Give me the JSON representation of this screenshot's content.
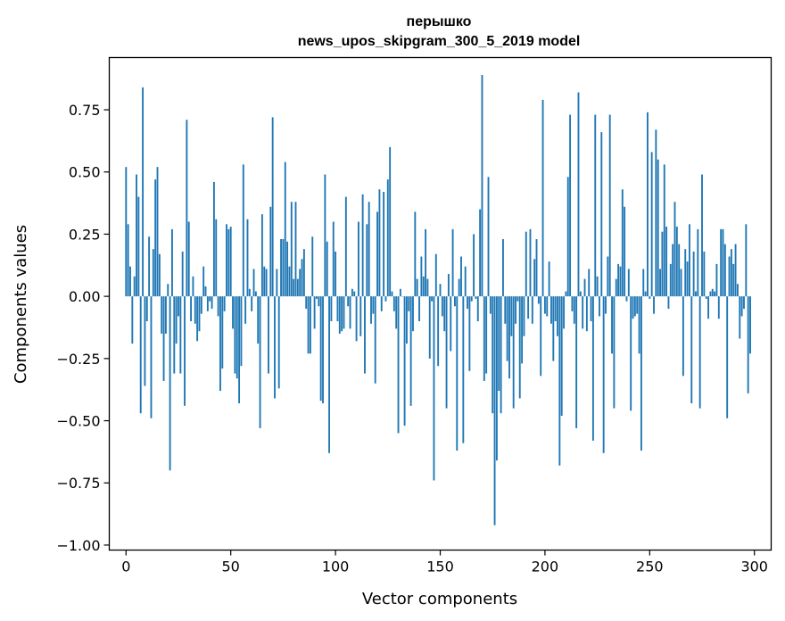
{
  "chart_data": {
    "type": "bar",
    "title": "перышко",
    "subtitle": "news_upos_skipgram_300_5_2019 model",
    "xlabel": "Vector components",
    "ylabel": "Components values",
    "xlim": [
      -8,
      308
    ],
    "ylim": [
      -1.02,
      0.96
    ],
    "xticks": [
      0,
      50,
      100,
      150,
      200,
      250,
      300
    ],
    "xtick_labels": [
      "0",
      "50",
      "100",
      "150",
      "200",
      "250",
      "300"
    ],
    "yticks": [
      -1.0,
      -0.75,
      -0.5,
      -0.25,
      0.0,
      0.25,
      0.5,
      0.75
    ],
    "ytick_labels": [
      "−1.00",
      "−0.75",
      "−0.50",
      "−0.25",
      "0.00",
      "0.25",
      "0.50",
      "0.75"
    ],
    "bar_color": "#1f77b4",
    "grid": false,
    "values": [
      0.52,
      0.29,
      0.12,
      -0.19,
      0.08,
      0.49,
      0.4,
      -0.47,
      0.84,
      -0.36,
      -0.1,
      0.24,
      -0.49,
      0.19,
      0.47,
      0.52,
      0.17,
      -0.15,
      -0.34,
      -0.15,
      0.05,
      -0.7,
      0.27,
      -0.31,
      -0.19,
      -0.08,
      -0.31,
      0.18,
      -0.44,
      0.71,
      0.3,
      -0.1,
      0.08,
      -0.11,
      -0.18,
      -0.14,
      -0.07,
      0.12,
      0.04,
      -0.06,
      -0.02,
      -0.05,
      0.46,
      0.31,
      -0.08,
      -0.38,
      -0.29,
      -0.06,
      0.29,
      0.27,
      0.28,
      -0.13,
      -0.31,
      -0.33,
      -0.43,
      -0.28,
      0.53,
      -0.11,
      0.31,
      0.03,
      -0.06,
      0.11,
      0.02,
      -0.19,
      -0.53,
      0.33,
      0.12,
      0.11,
      -0.31,
      0.36,
      0.72,
      -0.41,
      0.11,
      -0.37,
      0.23,
      0.23,
      0.54,
      0.22,
      0.12,
      0.38,
      0.07,
      0.38,
      0.07,
      0.11,
      0.15,
      0.19,
      -0.05,
      -0.23,
      -0.23,
      0.24,
      -0.13,
      -0.01,
      -0.04,
      -0.42,
      -0.43,
      0.49,
      0.22,
      -0.63,
      -0.1,
      0.3,
      0.18,
      -0.1,
      -0.15,
      -0.14,
      -0.13,
      0.4,
      -0.04,
      -0.13,
      0.03,
      0.02,
      -0.18,
      0.3,
      -0.16,
      0.41,
      -0.31,
      0.29,
      0.38,
      -0.11,
      -0.07,
      -0.35,
      0.34,
      0.43,
      -0.06,
      0.42,
      -0.02,
      0.47,
      0.6,
      0.02,
      -0.06,
      -0.13,
      -0.55,
      0.03,
      0.0,
      -0.52,
      -0.19,
      -0.06,
      -0.44,
      -0.14,
      0.34,
      0.07,
      -0.1,
      0.16,
      0.08,
      0.27,
      0.07,
      -0.25,
      -0.02,
      -0.74,
      0.17,
      -0.28,
      0.05,
      -0.08,
      -0.14,
      -0.45,
      0.09,
      -0.22,
      0.27,
      -0.04,
      -0.62,
      0.07,
      0.16,
      -0.59,
      0.12,
      -0.05,
      -0.3,
      -0.02,
      0.25,
      -0.01,
      -0.1,
      0.35,
      0.89,
      -0.34,
      -0.31,
      0.48,
      -0.07,
      -0.47,
      -0.92,
      -0.66,
      -0.38,
      -0.47,
      0.23,
      -0.11,
      -0.26,
      -0.33,
      -0.16,
      -0.45,
      -0.11,
      -0.02,
      -0.41,
      -0.27,
      -0.16,
      0.26,
      -0.09,
      0.27,
      -0.11,
      0.15,
      0.23,
      -0.03,
      -0.32,
      0.79,
      -0.07,
      -0.08,
      0.14,
      -0.11,
      -0.26,
      -0.1,
      -0.16,
      -0.68,
      -0.48,
      -0.13,
      0.02,
      0.48,
      0.73,
      -0.06,
      -0.11,
      -0.53,
      0.82,
      0.02,
      -0.13,
      0.07,
      -0.14,
      0.11,
      -0.1,
      -0.58,
      0.73,
      0.08,
      -0.08,
      0.66,
      -0.63,
      -0.07,
      0.16,
      0.73,
      -0.23,
      -0.45,
      0.07,
      0.13,
      0.12,
      0.43,
      0.36,
      -0.02,
      0.11,
      -0.46,
      -0.09,
      -0.08,
      -0.07,
      -0.23,
      -0.62,
      0.11,
      0.02,
      0.74,
      -0.01,
      0.58,
      -0.07,
      0.67,
      0.55,
      0.11,
      0.26,
      0.53,
      0.28,
      -0.05,
      0.13,
      0.21,
      0.38,
      0.28,
      0.21,
      0.11,
      -0.32,
      0.19,
      0.14,
      0.29,
      -0.43,
      0.18,
      0.02,
      0.27,
      -0.45,
      0.49,
      0.18,
      -0.01,
      -0.09,
      0.02,
      0.03,
      0.02,
      0.13,
      -0.09,
      0.27,
      0.27,
      0.21,
      -0.49,
      0.16,
      0.19,
      0.13,
      0.21,
      0.05,
      -0.17,
      -0.08,
      -0.05,
      0.29,
      -0.39,
      -0.23
    ]
  }
}
